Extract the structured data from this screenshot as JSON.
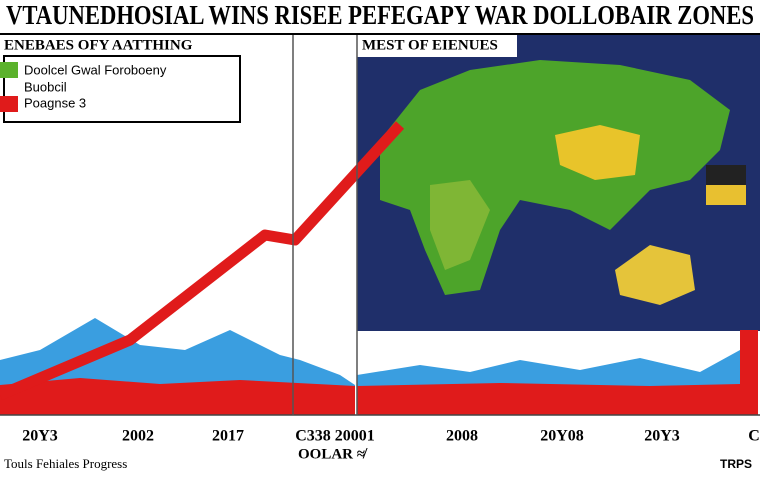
{
  "header": {
    "title": "VTAUNEDHOSIAL WINS RISEE PEFEGAPY WAR DOLLOBAIR ZONES"
  },
  "left_panel": {
    "label": "ENEBAES OFY AATTHING",
    "legend": [
      "Doolcel Gwal Foroboeny",
      "Buobcil",
      "Poagnse 3"
    ]
  },
  "right_panel": {
    "label": "MEST OF EIENUES"
  },
  "x_labels": [
    "20Y3",
    "2002",
    "2017",
    "C338 20001",
    "2008",
    "20Y08",
    "20Y3",
    "C"
  ],
  "footer": {
    "left": "Touls Fehiales Progress",
    "middle": "OOLAR ≉",
    "right": "TRPS"
  }
}
